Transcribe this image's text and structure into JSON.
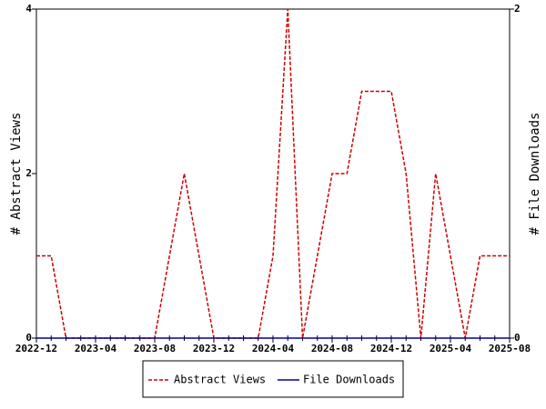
{
  "chart_data": {
    "type": "line",
    "x": [
      "2022-12",
      "2023-01",
      "2023-02",
      "2023-03",
      "2023-04",
      "2023-05",
      "2023-06",
      "2023-07",
      "2023-08",
      "2023-09",
      "2023-10",
      "2023-11",
      "2023-12",
      "2024-01",
      "2024-02",
      "2024-03",
      "2024-04",
      "2024-05",
      "2024-06",
      "2024-07",
      "2024-08",
      "2024-09",
      "2024-10",
      "2024-11",
      "2024-12",
      "2025-01",
      "2025-02",
      "2025-03",
      "2025-04",
      "2025-05",
      "2025-06",
      "2025-07",
      "2025-08"
    ],
    "series": [
      {
        "name": "Abstract Views",
        "color": "#cc0000",
        "dashed": true,
        "axis": "y",
        "values": [
          1,
          1,
          0,
          0,
          0,
          0,
          0,
          0,
          0,
          1,
          2,
          1,
          0,
          0,
          0,
          0,
          1,
          4,
          0,
          1,
          2,
          2,
          3,
          3,
          3,
          2,
          0,
          2,
          1,
          0,
          1,
          1,
          1
        ]
      },
      {
        "name": "File Downloads",
        "color": "#000099",
        "dashed": false,
        "axis": "y2",
        "values": [
          0,
          0,
          0,
          0,
          0,
          0,
          0,
          0,
          0,
          0,
          0,
          0,
          0,
          0,
          0,
          0,
          0,
          0,
          0,
          0,
          0,
          0,
          0,
          0,
          0,
          0,
          0,
          0,
          0,
          0,
          0,
          0,
          0
        ]
      }
    ],
    "xlim": [
      "2022-12",
      "2025-08"
    ],
    "xticks": [
      "2022-12",
      "2023-04",
      "2023-08",
      "2023-12",
      "2024-04",
      "2024-08",
      "2024-12",
      "2025-04",
      "2025-08"
    ],
    "ylabel": "# Abstract Views",
    "ylim": [
      0,
      4
    ],
    "yticks": [
      0,
      2,
      4
    ],
    "y2label": "# File Downloads",
    "y2lim": [
      0,
      2
    ],
    "y2ticks": [
      0,
      2
    ],
    "legend": "bottom"
  }
}
